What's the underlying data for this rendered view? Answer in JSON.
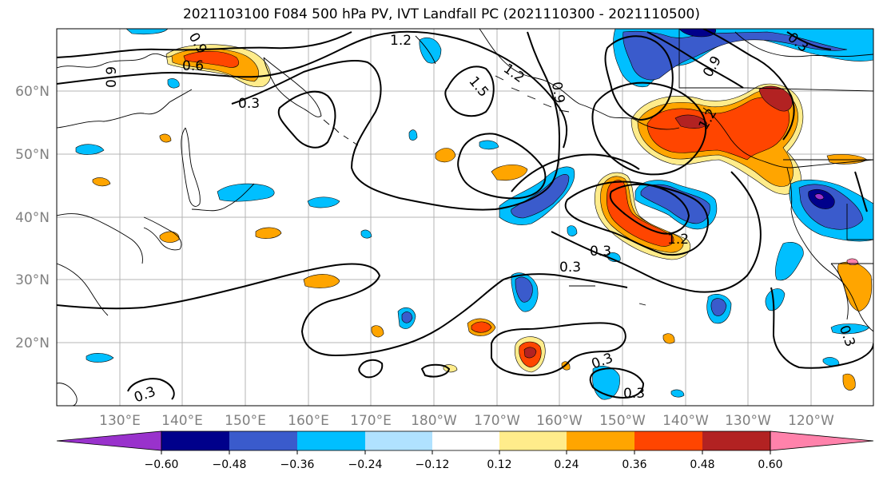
{
  "title": "2021103100 F084 500 hPa PV, IVT Landfall PC (2021110300 - 2021110500)",
  "map": {
    "lon_labels": [
      "130°E",
      "140°E",
      "150°E",
      "160°E",
      "170°E",
      "180°W",
      "170°W",
      "160°W",
      "150°W",
      "140°W",
      "130°W",
      "120°W"
    ],
    "lat_labels": [
      "60°N",
      "50°N",
      "40°N",
      "30°N",
      "20°N"
    ],
    "contour_labels": [
      "1.2",
      "0.9",
      "0.6",
      "1.5",
      "1.2",
      "0.9",
      "0.3",
      "0.9",
      "1.2",
      "0.9",
      "1.2",
      "0.3",
      "0.3",
      "0.3",
      "0.3",
      "0.3",
      "0.3",
      "0.3"
    ]
  },
  "colorbar": {
    "ticks": [
      "−0.60",
      "−0.48",
      "−0.36",
      "−0.24",
      "−0.12",
      "0.12",
      "0.24",
      "0.36",
      "0.48",
      "0.60"
    ],
    "colors": [
      "#9932cc",
      "#00008b",
      "#3a5bcc",
      "#00bfff",
      "#b0e2ff",
      "#ffffff",
      "#ffec8b",
      "#ffa500",
      "#ff4500",
      "#b22222",
      "#ff82ab"
    ]
  },
  "colors": {
    "grid": "#b4b4b4",
    "coast": "#000000",
    "contour": "#000000"
  }
}
